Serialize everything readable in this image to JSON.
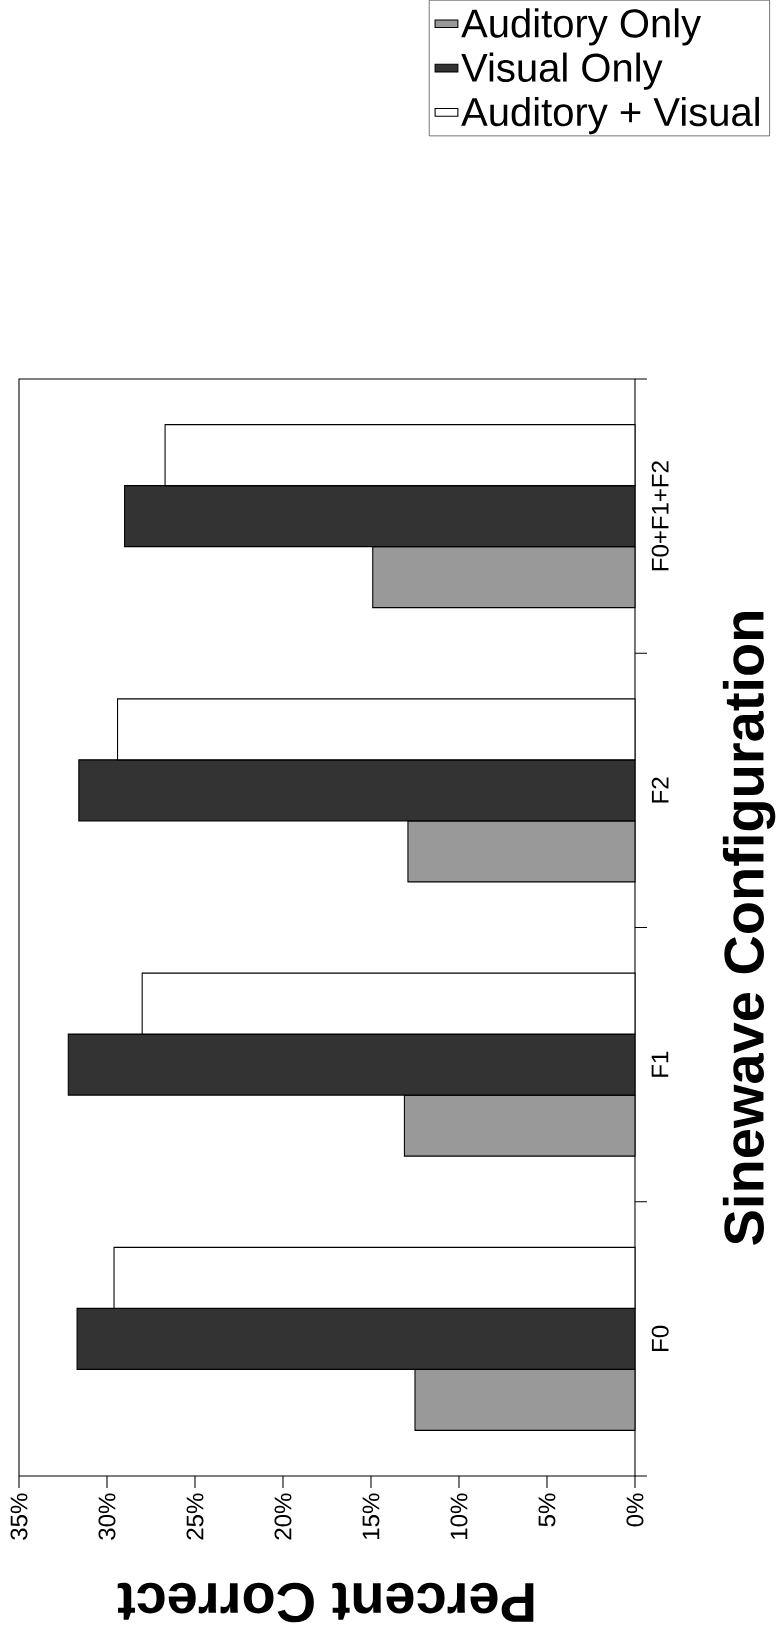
{
  "chart_data": {
    "type": "bar",
    "orientation": "horizontal",
    "xlabel": "Percent Correct",
    "ylabel": "Sinewave Configuration",
    "categories": [
      "F0+F1+F2",
      "F2",
      "F1",
      "F0"
    ],
    "series": [
      {
        "name": "Auditory Only",
        "color": "#999999",
        "values": [
          14.9,
          12.9,
          13.1,
          12.5
        ]
      },
      {
        "name": "Visual Only",
        "color": "#333333",
        "values": [
          29.0,
          31.6,
          32.2,
          31.7
        ]
      },
      {
        "name": "Auditory + Visual",
        "color": "#ffffff",
        "values": [
          26.7,
          29.4,
          28.0,
          29.6
        ]
      }
    ],
    "xlim": [
      35,
      0
    ],
    "xticks": [
      {
        "value": 35,
        "label": "35%"
      },
      {
        "value": 30,
        "label": "30%"
      },
      {
        "value": 25,
        "label": "25%"
      },
      {
        "value": 20,
        "label": "20%"
      },
      {
        "value": 15,
        "label": "15%"
      },
      {
        "value": 10,
        "label": "10%"
      },
      {
        "value": 5,
        "label": "5%"
      },
      {
        "value": 0,
        "label": "0%"
      }
    ],
    "legend": "top right"
  }
}
